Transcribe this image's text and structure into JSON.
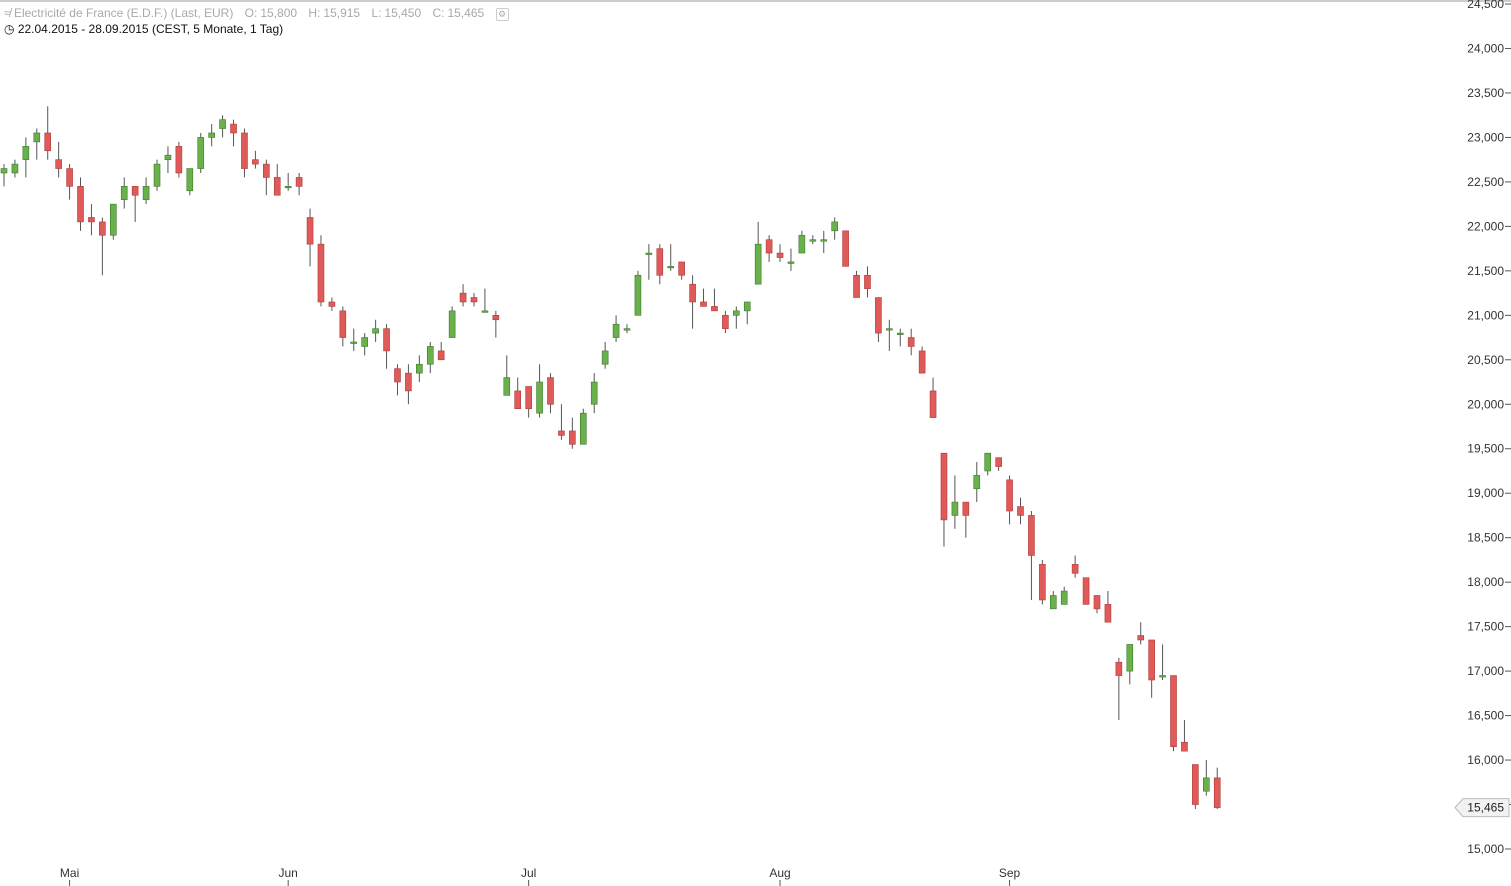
{
  "header": {
    "icon": "waveform-icon",
    "title": "Electricité de France (E.D.F.) (Last, EUR)",
    "o_label": "O:",
    "o_value": "15,800",
    "h_label": "H:",
    "h_value": "15,915",
    "l_label": "L:",
    "l_value": "15,450",
    "c_label": "C:",
    "c_value": "15,465",
    "settings_icon": "gear-icon",
    "clock_icon": "clock-icon",
    "range_text": "22.04.2015 - 28.09.2015 (CEST, 5 Monate, 1 Tag)"
  },
  "colors": {
    "up": "#6ab04c",
    "down": "#e05a5a",
    "wick": "#555555",
    "axis": "#333333"
  },
  "chart_data": {
    "type": "candlestick",
    "x_range": [
      "22.04.2015",
      "28.09.2015"
    ],
    "y_ticks": [
      "15,000",
      "15,500",
      "16,000",
      "16,500",
      "17,000",
      "17,500",
      "18,000",
      "18,500",
      "19,000",
      "19,500",
      "20,000",
      "20,500",
      "21,000",
      "21,500",
      "22,000",
      "22,500",
      "23,000",
      "23,500",
      "24,000",
      "24,500"
    ],
    "ylim": [
      14.85,
      24.5
    ],
    "x_tick_labels": [
      {
        "label": "Mai",
        "index": 6
      },
      {
        "label": "Jun",
        "index": 26
      },
      {
        "label": "Jul",
        "index": 48
      },
      {
        "label": "Aug",
        "index": 71
      },
      {
        "label": "Sep",
        "index": 92
      }
    ],
    "last_value_label": "15,465",
    "last_value": 15.465,
    "candles": [
      [
        22.6,
        22.7,
        22.45,
        22.65
      ],
      [
        22.6,
        22.75,
        22.55,
        22.7
      ],
      [
        22.75,
        23.0,
        22.55,
        22.9
      ],
      [
        22.95,
        23.1,
        22.75,
        23.05
      ],
      [
        23.05,
        23.35,
        22.75,
        22.85
      ],
      [
        22.75,
        22.95,
        22.55,
        22.65
      ],
      [
        22.65,
        22.7,
        22.3,
        22.45
      ],
      [
        22.45,
        22.55,
        21.95,
        22.05
      ],
      [
        22.1,
        22.25,
        21.9,
        22.05
      ],
      [
        22.05,
        22.1,
        21.45,
        21.9
      ],
      [
        21.9,
        22.25,
        21.85,
        22.25
      ],
      [
        22.3,
        22.55,
        22.2,
        22.45
      ],
      [
        22.45,
        22.45,
        22.05,
        22.35
      ],
      [
        22.3,
        22.55,
        22.25,
        22.45
      ],
      [
        22.45,
        22.75,
        22.4,
        22.7
      ],
      [
        22.75,
        22.9,
        22.6,
        22.8
      ],
      [
        22.9,
        22.95,
        22.55,
        22.6
      ],
      [
        22.4,
        22.65,
        22.35,
        22.65
      ],
      [
        22.65,
        23.05,
        22.6,
        23.0
      ],
      [
        23.0,
        23.15,
        22.9,
        23.05
      ],
      [
        23.1,
        23.25,
        23.0,
        23.2
      ],
      [
        23.15,
        23.2,
        22.9,
        23.05
      ],
      [
        23.05,
        23.1,
        22.55,
        22.65
      ],
      [
        22.75,
        22.85,
        22.65,
        22.7
      ],
      [
        22.7,
        22.75,
        22.35,
        22.55
      ],
      [
        22.55,
        22.7,
        22.35,
        22.35
      ],
      [
        22.45,
        22.6,
        22.4,
        22.45
      ],
      [
        22.55,
        22.6,
        22.35,
        22.45
      ],
      [
        22.1,
        22.2,
        21.55,
        21.8
      ],
      [
        21.8,
        21.9,
        21.1,
        21.15
      ],
      [
        21.15,
        21.2,
        21.05,
        21.1
      ],
      [
        21.05,
        21.1,
        20.65,
        20.75
      ],
      [
        20.7,
        20.85,
        20.6,
        20.7
      ],
      [
        20.65,
        20.8,
        20.55,
        20.75
      ],
      [
        20.8,
        20.95,
        20.7,
        20.85
      ],
      [
        20.85,
        20.9,
        20.4,
        20.6
      ],
      [
        20.4,
        20.45,
        20.1,
        20.25
      ],
      [
        20.35,
        20.45,
        20.0,
        20.15
      ],
      [
        20.35,
        20.55,
        20.25,
        20.45
      ],
      [
        20.45,
        20.7,
        20.35,
        20.65
      ],
      [
        20.6,
        20.7,
        20.5,
        20.5
      ],
      [
        20.75,
        21.1,
        20.75,
        21.05
      ],
      [
        21.25,
        21.35,
        21.1,
        21.15
      ],
      [
        21.2,
        21.25,
        21.1,
        21.15
      ],
      [
        21.05,
        21.3,
        21.05,
        21.05
      ],
      [
        21.0,
        21.05,
        20.75,
        20.95
      ],
      [
        20.1,
        20.55,
        20.1,
        20.3
      ],
      [
        20.15,
        20.3,
        19.95,
        19.95
      ],
      [
        20.2,
        20.2,
        19.85,
        19.95
      ],
      [
        19.9,
        20.45,
        19.85,
        20.25
      ],
      [
        20.3,
        20.35,
        19.9,
        20.0
      ],
      [
        19.7,
        20.0,
        19.6,
        19.65
      ],
      [
        19.7,
        19.85,
        19.5,
        19.55
      ],
      [
        19.55,
        19.95,
        19.55,
        19.9
      ],
      [
        20.0,
        20.35,
        19.9,
        20.25
      ],
      [
        20.45,
        20.7,
        20.4,
        20.6
      ],
      [
        20.75,
        21.0,
        20.7,
        20.9
      ],
      [
        20.85,
        20.9,
        20.8,
        20.85
      ],
      [
        21.0,
        21.5,
        21.0,
        21.45
      ],
      [
        21.7,
        21.8,
        21.4,
        21.7
      ],
      [
        21.75,
        21.8,
        21.35,
        21.45
      ],
      [
        21.55,
        21.8,
        21.5,
        21.55
      ],
      [
        21.6,
        21.6,
        21.4,
        21.45
      ],
      [
        21.35,
        21.45,
        20.85,
        21.15
      ],
      [
        21.15,
        21.3,
        21.1,
        21.1
      ],
      [
        21.1,
        21.3,
        21.05,
        21.05
      ],
      [
        21.0,
        21.05,
        20.8,
        20.85
      ],
      [
        21.0,
        21.1,
        20.85,
        21.05
      ],
      [
        21.05,
        21.15,
        20.9,
        21.15
      ],
      [
        21.35,
        22.05,
        21.35,
        21.8
      ],
      [
        21.85,
        21.9,
        21.6,
        21.7
      ],
      [
        21.7,
        21.8,
        21.6,
        21.65
      ],
      [
        21.6,
        21.75,
        21.5,
        21.6
      ],
      [
        21.7,
        21.95,
        21.7,
        21.9
      ],
      [
        21.85,
        21.9,
        21.8,
        21.85
      ],
      [
        21.85,
        21.95,
        21.7,
        21.85
      ],
      [
        21.95,
        22.1,
        21.85,
        22.05
      ],
      [
        21.95,
        21.95,
        21.55,
        21.55
      ],
      [
        21.45,
        21.5,
        21.2,
        21.2
      ],
      [
        21.45,
        21.55,
        21.2,
        21.3
      ],
      [
        21.2,
        21.2,
        20.7,
        20.8
      ],
      [
        20.85,
        20.95,
        20.6,
        20.85
      ],
      [
        20.8,
        20.85,
        20.65,
        20.8
      ],
      [
        20.75,
        20.85,
        20.55,
        20.65
      ],
      [
        20.6,
        20.65,
        20.35,
        20.35
      ],
      [
        20.15,
        20.3,
        19.85,
        19.85
      ],
      [
        19.45,
        19.45,
        18.4,
        18.7
      ],
      [
        18.75,
        19.2,
        18.6,
        18.9
      ],
      [
        18.9,
        18.9,
        18.5,
        18.75
      ],
      [
        19.05,
        19.35,
        18.9,
        19.2
      ],
      [
        19.25,
        19.45,
        19.2,
        19.45
      ],
      [
        19.4,
        19.4,
        19.25,
        19.3
      ],
      [
        19.15,
        19.2,
        18.65,
        18.8
      ],
      [
        18.85,
        18.95,
        18.65,
        18.75
      ],
      [
        18.75,
        18.8,
        17.8,
        18.3
      ],
      [
        18.2,
        18.25,
        17.75,
        17.8
      ],
      [
        17.7,
        17.9,
        17.7,
        17.85
      ],
      [
        17.75,
        17.95,
        17.75,
        17.9
      ],
      [
        18.2,
        18.3,
        18.05,
        18.1
      ],
      [
        18.05,
        18.05,
        17.75,
        17.75
      ],
      [
        17.85,
        17.85,
        17.65,
        17.7
      ],
      [
        17.75,
        17.9,
        17.55,
        17.55
      ],
      [
        17.1,
        17.15,
        16.45,
        16.95
      ],
      [
        17.0,
        17.3,
        16.85,
        17.3
      ],
      [
        17.4,
        17.55,
        17.3,
        17.35
      ],
      [
        17.35,
        17.35,
        16.7,
        16.9
      ],
      [
        16.95,
        17.3,
        16.9,
        16.95
      ],
      [
        16.95,
        16.95,
        16.1,
        16.15
      ],
      [
        16.2,
        16.45,
        16.1,
        16.1
      ],
      [
        15.95,
        15.95,
        15.45,
        15.5
      ],
      [
        15.65,
        16.0,
        15.6,
        15.8
      ],
      [
        15.8,
        15.915,
        15.45,
        15.465
      ]
    ]
  }
}
